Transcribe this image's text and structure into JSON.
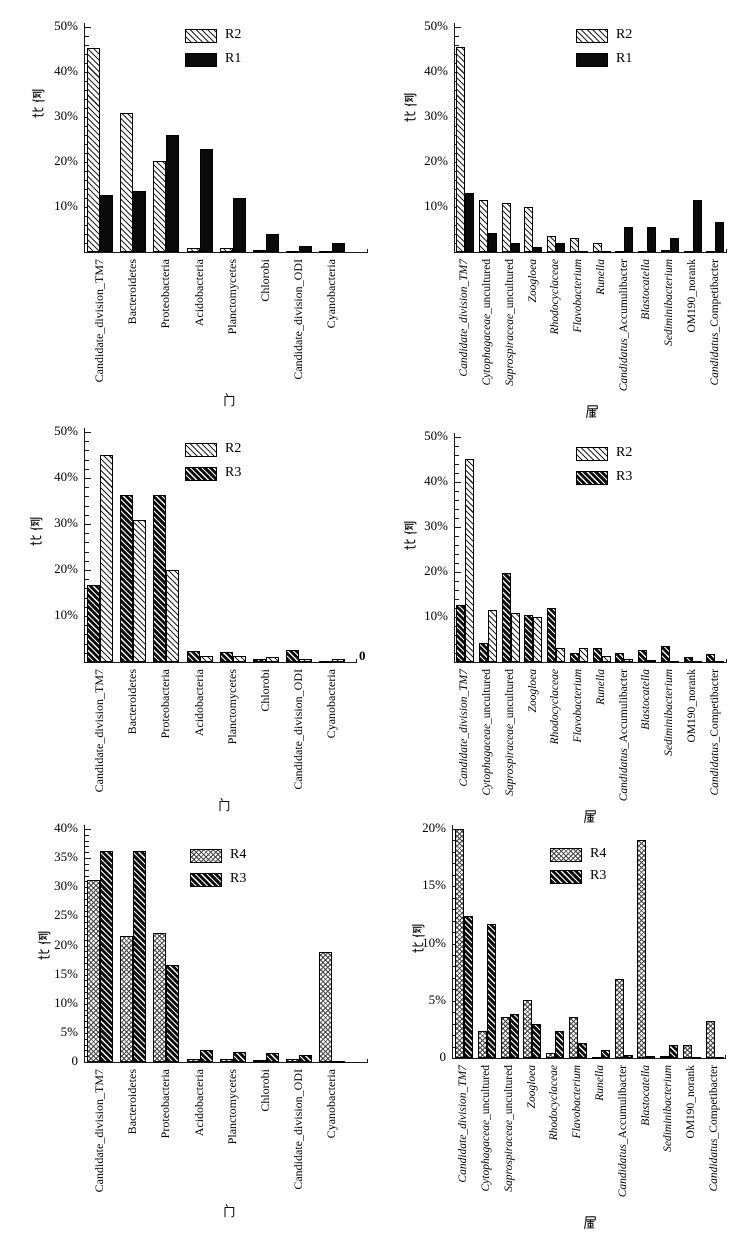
{
  "figure": {
    "background": "#ffffff",
    "axis_color": "#1a1a1a",
    "series_patterns": {
      "R1": "solid-black",
      "R2": "diagonal-hatch-white",
      "R3": "diagonal-hatch-black",
      "R4": "crosshatch"
    }
  },
  "chart_data": [
    {
      "panel_id": "panel-1",
      "position": "top-left",
      "type": "bar",
      "ylabel": "比例",
      "xlabel": "门",
      "ylim": [
        0,
        50
      ],
      "y_major": 10,
      "y_minor": 2,
      "y_ticks": [
        {
          "v": 10,
          "label": "10%"
        },
        {
          "v": 20,
          "label": "20%"
        },
        {
          "v": 30,
          "label": "30%"
        },
        {
          "v": 40,
          "label": "40%"
        },
        {
          "v": 50,
          "label": "50%"
        }
      ],
      "legend": [
        {
          "label": "R2",
          "pattern": "diagonal-hatch-white"
        },
        {
          "label": "R1",
          "pattern": "solid-black"
        }
      ],
      "categories": [
        {
          "italic": "",
          "plain": "Candidate_division_TM7"
        },
        {
          "italic": "",
          "plain": "Bacteroidetes"
        },
        {
          "italic": "",
          "plain": "Proteobacteria"
        },
        {
          "italic": "",
          "plain": "Acidobacteria"
        },
        {
          "italic": "",
          "plain": "Planctomycetes"
        },
        {
          "italic": "",
          "plain": "Chlorobi"
        },
        {
          "italic": "",
          "plain": "Candidate_division_ODI"
        },
        {
          "italic": "",
          "plain": "Cyanobacteria"
        }
      ],
      "series": [
        {
          "name": "R2",
          "pattern": "diagonal-hatch-white",
          "values": [
            45.3,
            30.8,
            20.2,
            0.9,
            0.8,
            0.5,
            0.2,
            0.1
          ]
        },
        {
          "name": "R1",
          "pattern": "solid-black",
          "values": [
            12.6,
            13.5,
            25.9,
            22.8,
            11.9,
            3.9,
            1.3,
            1.9
          ]
        }
      ]
    },
    {
      "panel_id": "panel-2",
      "position": "top-right",
      "type": "bar",
      "ylabel": "比例",
      "xlabel": "属",
      "ylim": [
        0,
        50
      ],
      "y_major": 10,
      "y_minor": 2,
      "y_ticks": [
        {
          "v": 10,
          "label": "10%"
        },
        {
          "v": 20,
          "label": "20%"
        },
        {
          "v": 30,
          "label": "30%"
        },
        {
          "v": 40,
          "label": "40%"
        },
        {
          "v": 50,
          "label": "50%"
        }
      ],
      "legend": [
        {
          "label": "R2",
          "pattern": "diagonal-hatch-white"
        },
        {
          "label": "R1",
          "pattern": "solid-black"
        }
      ],
      "categories": [
        {
          "italic": "Candidate_division_TM7",
          "plain": ""
        },
        {
          "italic": "Cytophagaceae",
          "plain": "_uncultured"
        },
        {
          "italic": "Saprospiraceae",
          "plain": "_uncultured"
        },
        {
          "italic": "Zoogloea",
          "plain": ""
        },
        {
          "italic": "Rhodocyclaceae",
          "plain": ""
        },
        {
          "italic": "Flavobacterium",
          "plain": ""
        },
        {
          "italic": "Runella",
          "plain": ""
        },
        {
          "italic": "Candidatus",
          "plain": "_Accumulibacter"
        },
        {
          "italic": "Blastocatella",
          "plain": ""
        },
        {
          "italic": "Sediminibacterium",
          "plain": ""
        },
        {
          "italic": "",
          "plain": "OM190_norank"
        },
        {
          "italic": "Candidatus",
          "plain": "_Competibacter"
        }
      ],
      "series": [
        {
          "name": "R2",
          "pattern": "diagonal-hatch-white",
          "values": [
            45.6,
            11.5,
            10.8,
            10.0,
            3.5,
            3.2,
            1.9,
            0.3,
            0.3,
            0.4,
            0.3,
            0.1
          ]
        },
        {
          "name": "R1",
          "pattern": "solid-black",
          "values": [
            13.2,
            4.2,
            2.1,
            1.1,
            2.1,
            0.1,
            0.1,
            5.6,
            5.6,
            3.2,
            11.5,
            6.7
          ]
        }
      ]
    },
    {
      "panel_id": "panel-3",
      "position": "middle-left",
      "type": "bar",
      "ylabel": "比例",
      "xlabel": "门",
      "ylim": [
        0,
        50
      ],
      "y_major": 10,
      "y_minor": 2,
      "axis_end_annotation": "0",
      "y_ticks": [
        {
          "v": 10,
          "label": "10%"
        },
        {
          "v": 20,
          "label": "20%"
        },
        {
          "v": 30,
          "label": "30%"
        },
        {
          "v": 40,
          "label": "40%"
        },
        {
          "v": 50,
          "label": "50%"
        }
      ],
      "legend": [
        {
          "label": "R2",
          "pattern": "diagonal-hatch-white"
        },
        {
          "label": "R3",
          "pattern": "diagonal-hatch-black"
        }
      ],
      "categories": [
        {
          "italic": "",
          "plain": "Candidate_division_TM7"
        },
        {
          "italic": "",
          "plain": "Bacteroidetes"
        },
        {
          "italic": "",
          "plain": "Proteobacteria"
        },
        {
          "italic": "",
          "plain": "Acidobacteria"
        },
        {
          "italic": "",
          "plain": "Planctomycetes"
        },
        {
          "italic": "",
          "plain": "Chlorobi"
        },
        {
          "italic": "",
          "plain": "Candidate_division_ODI"
        },
        {
          "italic": "",
          "plain": "Cyanobacteria"
        }
      ],
      "series": [
        {
          "name": "R3",
          "pattern": "diagonal-hatch-black",
          "values": [
            16.8,
            36.3,
            36.3,
            2.3,
            2.1,
            0.7,
            2.5,
            0.3
          ]
        },
        {
          "name": "R2",
          "pattern": "diagonal-hatch-white",
          "values": [
            45.0,
            30.9,
            20.0,
            1.2,
            1.2,
            1.0,
            0.7,
            0.7
          ]
        }
      ]
    },
    {
      "panel_id": "panel-4",
      "position": "middle-right",
      "type": "bar",
      "ylabel": "比例",
      "xlabel": "属",
      "ylim": [
        0,
        50
      ],
      "y_major": 10,
      "y_minor": 2,
      "y_ticks": [
        {
          "v": 10,
          "label": "10%"
        },
        {
          "v": 20,
          "label": "20%"
        },
        {
          "v": 30,
          "label": "30%"
        },
        {
          "v": 40,
          "label": "40%"
        },
        {
          "v": 50,
          "label": "50%"
        }
      ],
      "legend": [
        {
          "label": "R2",
          "pattern": "diagonal-hatch-white"
        },
        {
          "label": "R3",
          "pattern": "diagonal-hatch-black"
        }
      ],
      "categories": [
        {
          "italic": "Candidate_division_TM7",
          "plain": ""
        },
        {
          "italic": "Cytophagaceae",
          "plain": "_uncultured"
        },
        {
          "italic": "Saprospiraceae",
          "plain": "_uncultured"
        },
        {
          "italic": "Zoogloea",
          "plain": ""
        },
        {
          "italic": "Rhodocyclaceae",
          "plain": ""
        },
        {
          "italic": "Flavobacterium",
          "plain": ""
        },
        {
          "italic": "Runella",
          "plain": ""
        },
        {
          "italic": "Candidatus",
          "plain": "_Accumulibacter"
        },
        {
          "italic": "Blastocatella",
          "plain": ""
        },
        {
          "italic": "Sediminibacterium",
          "plain": ""
        },
        {
          "italic": "",
          "plain": "OM190_norank"
        },
        {
          "italic": "Candidatus",
          "plain": "_Competibacter"
        }
      ],
      "series": [
        {
          "name": "R3",
          "pattern": "diagonal-hatch-black",
          "values": [
            12.6,
            4.2,
            19.7,
            10.5,
            12.1,
            2.0,
            3.0,
            2.1,
            2.7,
            3.6,
            1.1,
            1.7
          ]
        },
        {
          "name": "R2",
          "pattern": "diagonal-hatch-white",
          "values": [
            45.0,
            11.5,
            10.8,
            10.1,
            3.2,
            3.2,
            1.3,
            0.7,
            0.5,
            0.2,
            0.1,
            0.1
          ]
        }
      ]
    },
    {
      "panel_id": "panel-5",
      "position": "bottom-left",
      "type": "bar",
      "ylabel": "比例",
      "xlabel": "门",
      "ylim": [
        0,
        40
      ],
      "y_major": 5,
      "y_minor": 1,
      "y_ticks": [
        {
          "v": 0,
          "label": "0"
        },
        {
          "v": 5,
          "label": "5%"
        },
        {
          "v": 10,
          "label": "10%"
        },
        {
          "v": 15,
          "label": "15%"
        },
        {
          "v": 20,
          "label": "20%"
        },
        {
          "v": 25,
          "label": "25%"
        },
        {
          "v": 30,
          "label": "30%"
        },
        {
          "v": 35,
          "label": "35%"
        },
        {
          "v": 40,
          "label": "40%"
        }
      ],
      "legend": [
        {
          "label": "R4",
          "pattern": "crosshatch"
        },
        {
          "label": "R3",
          "pattern": "diagonal-hatch-black"
        }
      ],
      "categories": [
        {
          "italic": "",
          "plain": "Candidate_division_TM7"
        },
        {
          "italic": "",
          "plain": "Bacteroidetes"
        },
        {
          "italic": "",
          "plain": "Proteobacteria"
        },
        {
          "italic": "",
          "plain": "Acidobacteria"
        },
        {
          "italic": "",
          "plain": "Planctomycetes"
        },
        {
          "italic": "",
          "plain": "Chlorobi"
        },
        {
          "italic": "",
          "plain": "Candidate_division_ODI"
        },
        {
          "italic": "",
          "plain": "Cyanobacteria"
        }
      ],
      "series": [
        {
          "name": "R4",
          "pattern": "crosshatch",
          "values": [
            31.3,
            21.7,
            22.2,
            0.5,
            0.5,
            0.4,
            0.5,
            18.9
          ]
        },
        {
          "name": "R3",
          "pattern": "diagonal-hatch-black",
          "values": [
            36.3,
            36.2,
            16.7,
            2.1,
            1.8,
            1.5,
            1.2,
            0.2
          ]
        }
      ]
    },
    {
      "panel_id": "panel-6",
      "position": "bottom-right",
      "type": "bar",
      "ylabel": "比例",
      "xlabel": "属",
      "ylim": [
        0,
        20
      ],
      "y_major": 5,
      "y_minor": 1,
      "y_ticks": [
        {
          "v": 0,
          "label": "0"
        },
        {
          "v": 5,
          "label": "5%"
        },
        {
          "v": 10,
          "label": "10%"
        },
        {
          "v": 15,
          "label": "15%"
        },
        {
          "v": 20,
          "label": "20%"
        }
      ],
      "legend": [
        {
          "label": "R4",
          "pattern": "crosshatch"
        },
        {
          "label": "R3",
          "pattern": "diagonal-hatch-black"
        }
      ],
      "categories": [
        {
          "italic": "Candidate_division_TM7",
          "plain": ""
        },
        {
          "italic": "Cytophagaceae",
          "plain": "_uncultured"
        },
        {
          "italic": "Saprospiraceae",
          "plain": "_uncultured"
        },
        {
          "italic": "Zoogloea",
          "plain": ""
        },
        {
          "italic": "Rhodocyclaceae",
          "plain": ""
        },
        {
          "italic": "Flavobacterium",
          "plain": ""
        },
        {
          "italic": "Runella",
          "plain": ""
        },
        {
          "italic": "Candidatus",
          "plain": "_Accumulibacter"
        },
        {
          "italic": "Blastocatella",
          "plain": ""
        },
        {
          "italic": "Sediminibacterium",
          "plain": ""
        },
        {
          "italic": "",
          "plain": "OM190_norank"
        },
        {
          "italic": "Candidatus",
          "plain": "_Competibacter"
        }
      ],
      "series": [
        {
          "name": "R4",
          "pattern": "crosshatch",
          "values": [
            20.0,
            2.4,
            3.6,
            5.1,
            0.4,
            3.6,
            0.1,
            6.9,
            19.0,
            0.2,
            1.1,
            3.2
          ]
        },
        {
          "name": "R3",
          "pattern": "diagonal-hatch-black",
          "values": [
            12.4,
            11.7,
            3.8,
            3.0,
            2.4,
            1.3,
            0.7,
            0.3,
            0.2,
            1.1,
            0.1,
            0.1
          ]
        }
      ]
    }
  ]
}
